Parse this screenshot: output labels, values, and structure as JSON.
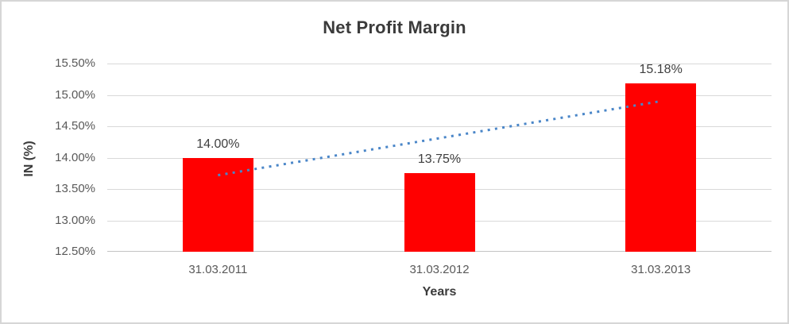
{
  "chart_data": {
    "type": "bar",
    "title": "Net Profit Margin",
    "xlabel": "Years",
    "ylabel": "IN (%)",
    "categories": [
      "31.03.2011",
      "31.03.2012",
      "31.03.2013"
    ],
    "values": [
      14.0,
      13.75,
      15.18
    ],
    "data_labels": [
      "14.00%",
      "13.75%",
      "15.18%"
    ],
    "ylim": [
      12.5,
      15.5
    ],
    "ytick_step": 0.5,
    "ytick_labels": [
      "12.50%",
      "13.00%",
      "13.50%",
      "14.00%",
      "14.50%",
      "15.00%",
      "15.50%"
    ],
    "grid": true,
    "legend": "none",
    "bar_color": "#ff0000",
    "gridline_color": "#d9d9d9",
    "title_color": "#3b3b3b",
    "tick_label_color": "#595959",
    "trendline": {
      "type": "linear",
      "style": "dotted",
      "color": "#4a86c8",
      "start_value": 13.72,
      "end_value": 14.9
    }
  }
}
